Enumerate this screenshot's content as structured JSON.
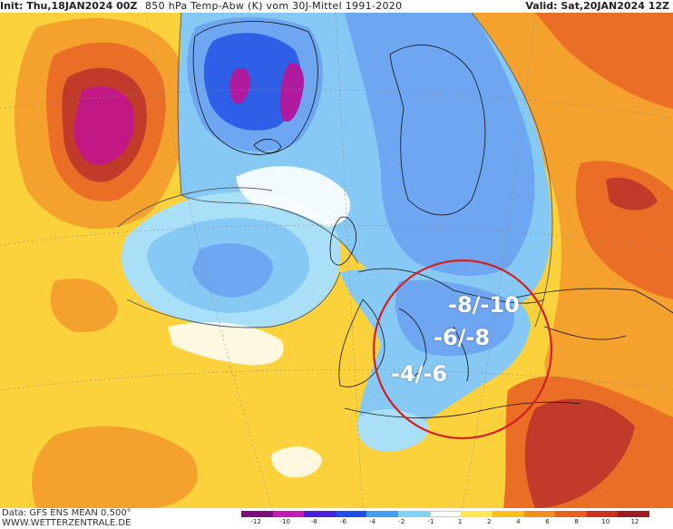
{
  "header": {
    "init_label": "Init: ",
    "init_value": "Thu,18JAN2024 00Z",
    "title": "850 hPa Temp-Abw (K) vom 30J-Mittel 1991-2020",
    "valid_label": "Valid: ",
    "valid_value": "Sat,20JAN2024 12Z"
  },
  "annotations": {
    "label_1": "-8/-10",
    "label_2": "-6/-8",
    "label_3": "-4/-6",
    "circle_color": "#d42020"
  },
  "footer": {
    "data_line": "Data: GFS ENS MEAN 0.500°",
    "site": "WWW.WETTERZENTRALE.DE"
  },
  "legend": {
    "ticks": [
      "-12",
      "-10",
      "-8",
      "-6",
      "-4",
      "-2",
      "-1",
      "1",
      "2",
      "4",
      "6",
      "8",
      "10",
      "12"
    ],
    "colors": [
      "#7a0f7a",
      "#c41bb4",
      "#4a1fe0",
      "#1f4fe6",
      "#3fa0f0",
      "#7fd4f5",
      "#ffffff",
      "#ffe84d",
      "#fbc11a",
      "#f28e1b",
      "#e8601c",
      "#c8321e",
      "#9e1b22"
    ]
  },
  "palette": {
    "cold_deep": "#6fa6f2",
    "cold_mid": "#86c9f5",
    "cold_light": "#a9dff7",
    "warm_light": "#ffe27a",
    "warm": "#fbc62f",
    "warm_orange": "#f4a12e",
    "hot": "#ea6e25",
    "very_hot": "#c23a2a",
    "magenta": "#d4187f"
  }
}
